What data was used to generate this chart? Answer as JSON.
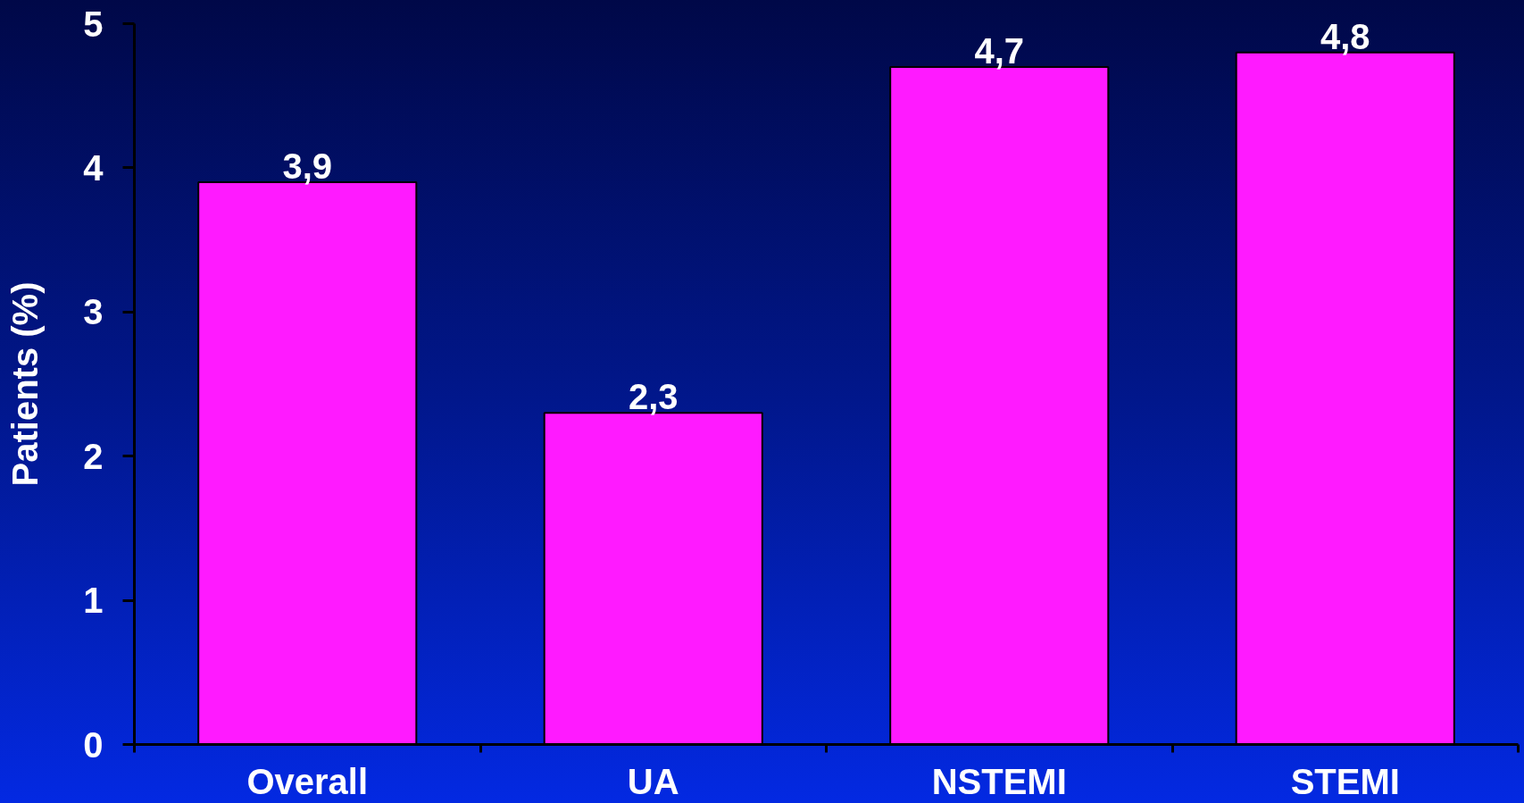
{
  "chart_data": {
    "type": "bar",
    "ylabel": "Patients (%)",
    "categories": [
      "Overall",
      "UA",
      "NSTEMI",
      "STEMI"
    ],
    "values": [
      3.9,
      2.3,
      4.7,
      4.8
    ],
    "value_labels": [
      "3,9",
      "2,3",
      "4,7",
      "4,8"
    ],
    "color": "#ff1aff",
    "ylim": [
      0,
      5
    ],
    "yticks": [
      0,
      1,
      2,
      3,
      4,
      5
    ]
  }
}
